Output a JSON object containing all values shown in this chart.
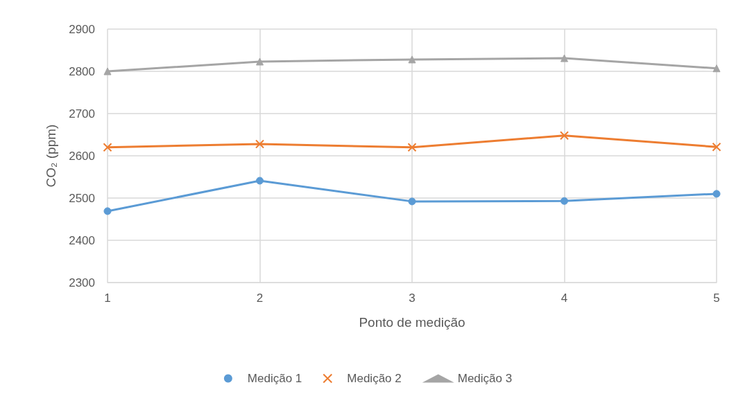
{
  "chart_data": {
    "type": "line",
    "xlabel": "Ponto de medição",
    "ylabel": "CO₂ (ppm)",
    "x": [
      1,
      2,
      3,
      4,
      5
    ],
    "xlim": [
      1,
      5
    ],
    "xticks": [
      1,
      2,
      3,
      4,
      5
    ],
    "ylim": [
      2300,
      2900
    ],
    "yticks": [
      2300,
      2400,
      2500,
      2600,
      2700,
      2800,
      2900
    ],
    "grid": true,
    "legend": "bottom",
    "series": [
      {
        "name": "Medição 1",
        "color": "#5b9bd5",
        "marker": "circle",
        "values": [
          2469,
          2541,
          2492,
          2493,
          2510
        ]
      },
      {
        "name": "Medição 2",
        "color": "#ed7d31",
        "marker": "cross",
        "values": [
          2620,
          2628,
          2620,
          2648,
          2621
        ]
      },
      {
        "name": "Medição 3",
        "color": "#a5a5a5",
        "marker": "triangle",
        "values": [
          2800,
          2823,
          2828,
          2831,
          2807
        ]
      }
    ]
  }
}
